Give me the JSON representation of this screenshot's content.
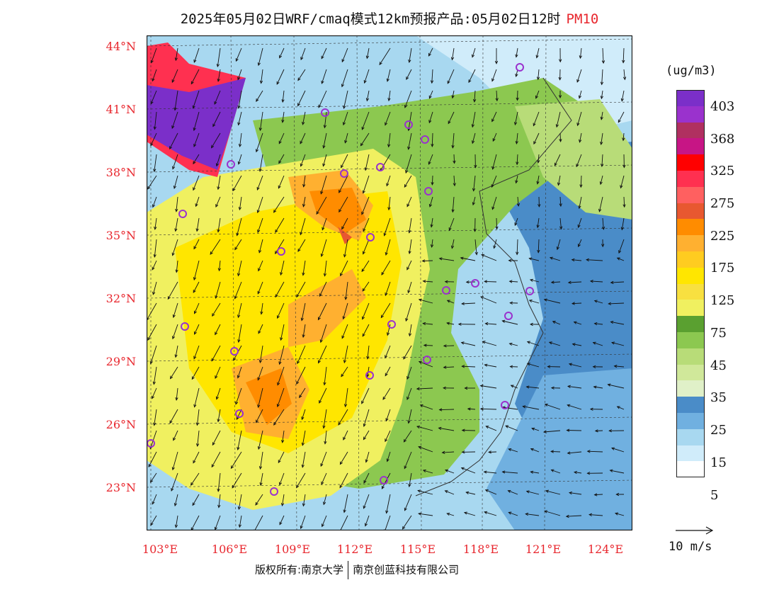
{
  "title": {
    "main": "2025年05月02日WRF/cmaq模式12km预报产品:05月02日12时",
    "pollutant": "PM10"
  },
  "axes": {
    "lat_labels": [
      "44°N",
      "41°N",
      "38°N",
      "35°N",
      "32°N",
      "29°N",
      "26°N",
      "23°N"
    ],
    "lon_labels": [
      "103°E",
      "106°E",
      "109°E",
      "112°E",
      "115°E",
      "118°E",
      "121°E",
      "124°E"
    ]
  },
  "legend": {
    "unit": "(ug/m3)",
    "labels": [
      "403",
      "368",
      "325",
      "275",
      "225",
      "175",
      "125",
      "75",
      "45",
      "35",
      "25",
      "15",
      "5"
    ],
    "colors": [
      "#7b2fc9",
      "#9a32cd",
      "#b03060",
      "#c71585",
      "#ff0000",
      "#ff3050",
      "#ff6060",
      "#e85830",
      "#ff8c00",
      "#ffb030",
      "#ffcc20",
      "#ffe600",
      "#f8e040",
      "#f0f060",
      "#5aa030",
      "#8cc850",
      "#b8dc78",
      "#d0e89a",
      "#e0f0c8",
      "#4a8cc8",
      "#70b0e0",
      "#a8d8f0",
      "#d0ecfa",
      "#ffffff"
    ],
    "reference_vector": "10 m/s"
  },
  "footer": {
    "copyright": "版权所有:南京大学",
    "company": "南京创蓝科技有限公司"
  },
  "map": {
    "city_marker_color": "#9a32cd",
    "land_colors": {
      "heavy": "#7b2fc9",
      "high": "#ff8c00",
      "medium": "#ffe600",
      "low": "#f0f060",
      "clean_land": "#8cc850",
      "sea": "#4a8cc8",
      "sea_light": "#a8d8f0"
    }
  }
}
